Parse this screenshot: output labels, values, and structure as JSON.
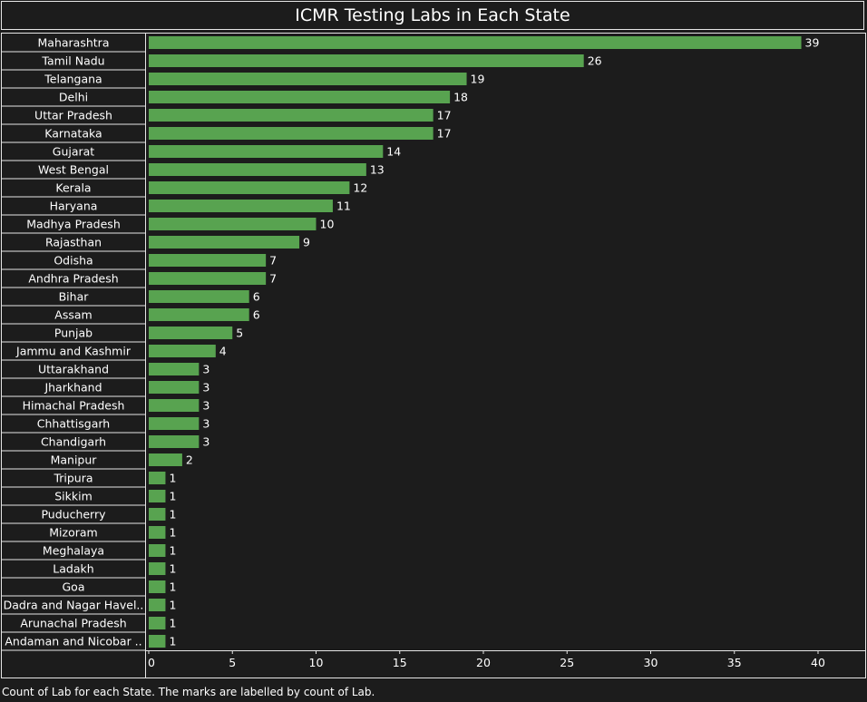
{
  "title": "ICMR Testing Labs in Each State",
  "caption": "Count of Lab for each State.  The marks are labelled by count of Lab.",
  "colors": {
    "bar": "#58a350",
    "background": "#1c1c1c",
    "text": "#ffffff",
    "border": "#e6e6e6"
  },
  "chart_data": {
    "type": "bar",
    "orientation": "horizontal",
    "title": "ICMR Testing Labs in Each State",
    "xlabel": "",
    "ylabel": "",
    "xlim": [
      0,
      42
    ],
    "xticks": [
      0,
      5,
      10,
      15,
      20,
      25,
      30,
      35,
      40
    ],
    "grid": false,
    "categories": [
      "Maharashtra",
      "Tamil Nadu",
      "Telangana",
      "Delhi",
      "Uttar Pradesh",
      "Karnataka",
      "Gujarat",
      "West Bengal",
      "Kerala",
      "Haryana",
      "Madhya Pradesh",
      "Rajasthan",
      "Odisha",
      "Andhra Pradesh",
      "Bihar",
      "Assam",
      "Punjab",
      "Jammu and Kashmir",
      "Uttarakhand",
      "Jharkhand",
      "Himachal Pradesh",
      "Chhattisgarh",
      "Chandigarh",
      "Manipur",
      "Tripura",
      "Sikkim",
      "Puducherry",
      "Mizoram",
      "Meghalaya",
      "Ladakh",
      "Goa",
      "Dadra and Nagar Havel..",
      "Arunachal Pradesh",
      "Andaman and Nicobar .."
    ],
    "values": [
      39,
      26,
      19,
      18,
      17,
      17,
      14,
      13,
      12,
      11,
      10,
      9,
      7,
      7,
      6,
      6,
      5,
      4,
      3,
      3,
      3,
      3,
      3,
      2,
      1,
      1,
      1,
      1,
      1,
      1,
      1,
      1,
      1,
      1
    ]
  }
}
